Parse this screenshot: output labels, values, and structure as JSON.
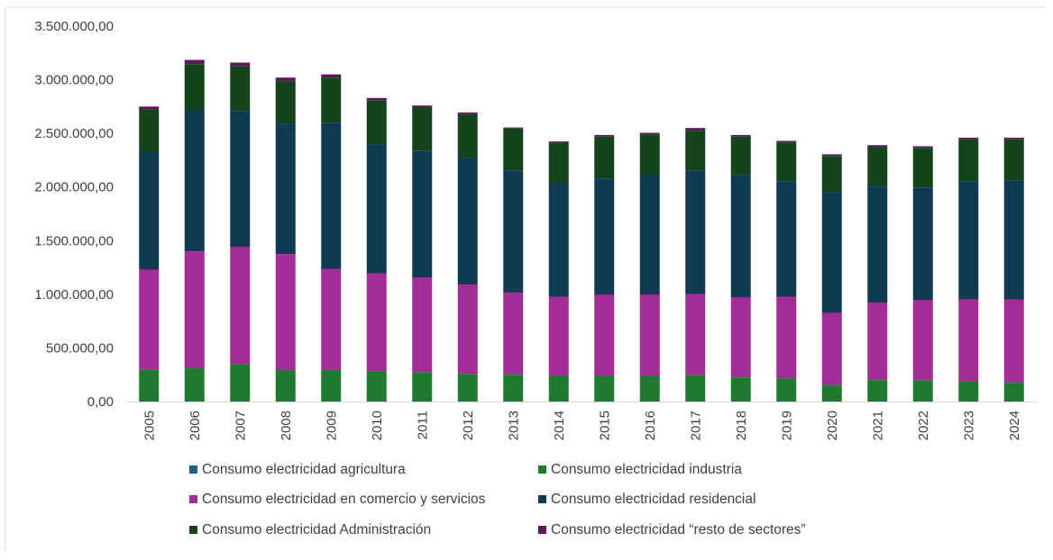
{
  "chart_data": {
    "type": "bar",
    "stacked": true,
    "categories": [
      "2005",
      "2006",
      "2007",
      "2008",
      "2009",
      "2010",
      "2011",
      "2012",
      "2013",
      "2014",
      "2015",
      "2016",
      "2017",
      "2018",
      "2019",
      "2020",
      "2021",
      "2022",
      "2023",
      "2024"
    ],
    "ylim": [
      0,
      3500000
    ],
    "yticks": [
      0,
      500000,
      1000000,
      1500000,
      2000000,
      2500000,
      3000000,
      3500000
    ],
    "ytick_labels": [
      "0,00",
      "500.000,00",
      "1.000.000,00",
      "1.500.000,00",
      "2.000.000,00",
      "2.500.000,00",
      "3.000.000,00",
      "3.500.000,00"
    ],
    "grid": false,
    "legend_position": "bottom",
    "series": [
      {
        "name": "Consumo electricidad agricultura",
        "color": "#1f5f84",
        "values": [
          0,
          0,
          0,
          0,
          0,
          0,
          0,
          0,
          0,
          0,
          0,
          0,
          0,
          0,
          0,
          0,
          0,
          0,
          0,
          0
        ]
      },
      {
        "name": "Consumo electricidad industria",
        "color": "#1e7a2e",
        "values": [
          295000,
          310000,
          345000,
          290000,
          290000,
          280000,
          270000,
          255000,
          250000,
          235000,
          235000,
          235000,
          245000,
          225000,
          215000,
          150000,
          200000,
          195000,
          185000,
          175000
        ]
      },
      {
        "name": "Consumo electricidad en comercio y servicios",
        "color": "#a32c96",
        "values": [
          935000,
          1090000,
          1095000,
          1085000,
          945000,
          915000,
          885000,
          835000,
          765000,
          740000,
          760000,
          760000,
          755000,
          745000,
          760000,
          675000,
          720000,
          750000,
          765000,
          775000
        ]
      },
      {
        "name": "Consumo electricidad residencial",
        "color": "#0e3a52",
        "values": [
          1095000,
          1315000,
          1270000,
          1215000,
          1365000,
          1205000,
          1180000,
          1180000,
          1135000,
          1060000,
          1085000,
          1120000,
          1150000,
          1140000,
          1080000,
          1130000,
          1085000,
          1050000,
          1105000,
          1110000
        ]
      },
      {
        "name": "Consumo electricidad Administración",
        "color": "#15441c",
        "values": [
          395000,
          430000,
          415000,
          395000,
          420000,
          405000,
          410000,
          410000,
          395000,
          375000,
          390000,
          375000,
          375000,
          360000,
          360000,
          335000,
          370000,
          370000,
          390000,
          385000
        ]
      },
      {
        "name": "Consumo electricidad “resto de sectores”",
        "color": "#5c1858",
        "values": [
          30000,
          40000,
          35000,
          35000,
          30000,
          25000,
          15000,
          15000,
          10000,
          15000,
          15000,
          15000,
          25000,
          15000,
          15000,
          15000,
          15000,
          15000,
          15000,
          15000
        ]
      }
    ]
  }
}
